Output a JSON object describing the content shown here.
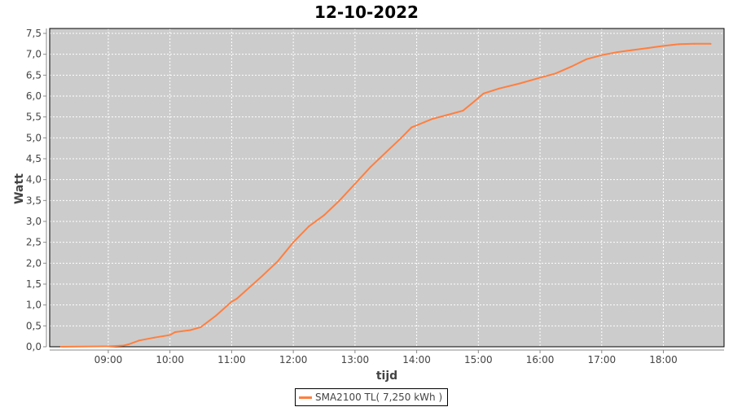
{
  "chart_data": {
    "type": "line",
    "title": "12-10-2022",
    "xlabel": "tijd",
    "ylabel": "Watt",
    "ylim": [
      0,
      7.5
    ],
    "xlim": [
      "08:03",
      "18:59"
    ],
    "yticks": [
      "0,0",
      "0,5",
      "1,0",
      "1,5",
      "2,0",
      "2,5",
      "3,0",
      "3,5",
      "4,0",
      "4,5",
      "5,0",
      "5,5",
      "6,0",
      "6,5",
      "7,0",
      "7,5"
    ],
    "xticks": [
      "09:00",
      "10:00",
      "11:00",
      "12:00",
      "13:00",
      "14:00",
      "15:00",
      "16:00",
      "17:00",
      "18:00"
    ],
    "grid": true,
    "legend_position": "bottom",
    "background": "#cccccc",
    "series": [
      {
        "name": "SMA2100 TL( 7,250 kWh )",
        "color": "#ff7f3f",
        "x": [
          "08:14",
          "09:00",
          "09:15",
          "09:20",
          "09:30",
          "09:45",
          "10:00",
          "10:05",
          "10:20",
          "10:30",
          "10:45",
          "11:00",
          "11:05",
          "11:30",
          "11:45",
          "12:00",
          "12:15",
          "12:30",
          "12:45",
          "13:00",
          "13:15",
          "13:30",
          "13:45",
          "13:55",
          "14:15",
          "14:30",
          "14:45",
          "14:54",
          "15:05",
          "15:20",
          "15:40",
          "16:00",
          "16:15",
          "16:30",
          "16:45",
          "17:00",
          "17:15",
          "17:30",
          "17:45",
          "18:00",
          "18:15",
          "18:30",
          "18:46"
        ],
        "y": [
          0,
          0.01,
          0.03,
          0.06,
          0.15,
          0.22,
          0.28,
          0.35,
          0.4,
          0.47,
          0.75,
          1.08,
          1.15,
          1.7,
          2.05,
          2.5,
          2.88,
          3.15,
          3.5,
          3.9,
          4.3,
          4.65,
          5.0,
          5.25,
          5.45,
          5.55,
          5.65,
          5.83,
          6.06,
          6.18,
          6.3,
          6.44,
          6.54,
          6.7,
          6.88,
          6.98,
          7.05,
          7.1,
          7.15,
          7.2,
          7.24,
          7.25,
          7.25
        ]
      }
    ]
  }
}
